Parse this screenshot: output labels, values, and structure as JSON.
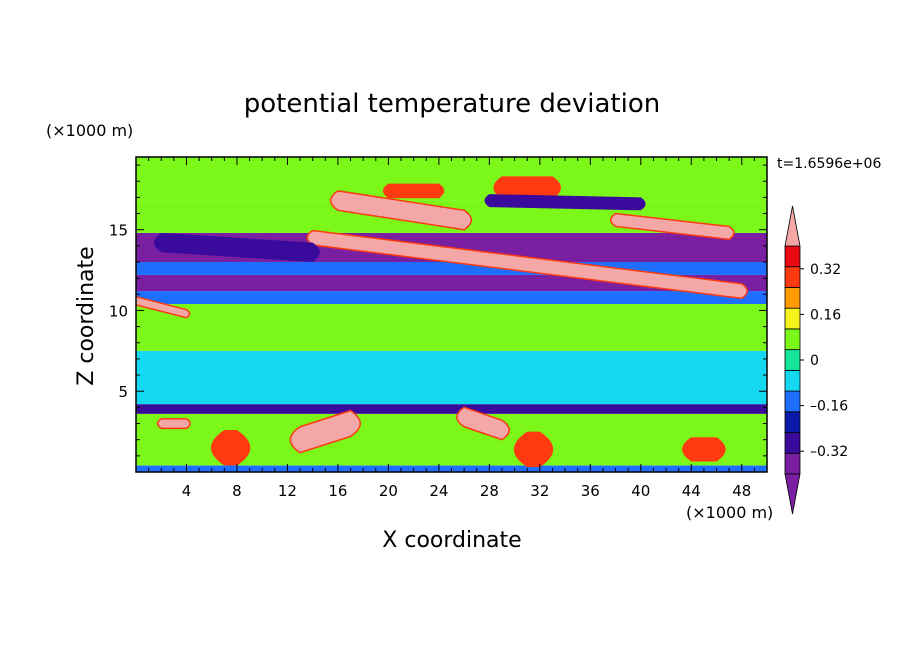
{
  "chart_data": {
    "type": "heatmap",
    "title": "potential temperature deviation",
    "xlabel": "X coordinate",
    "ylabel": "Z coordinate",
    "x_unit": "(×1000 m)",
    "y_unit": "(×1000 m)",
    "time_label": "t=1.6596e+06",
    "xlim": [
      0,
      50
    ],
    "ylim": [
      0,
      19.5
    ],
    "x_ticks": [
      4,
      8,
      12,
      16,
      20,
      24,
      28,
      32,
      36,
      40,
      44,
      48
    ],
    "y_ticks": [
      5,
      10,
      15
    ],
    "colorbar": {
      "levels": [
        -0.4,
        -0.32,
        -0.24,
        -0.16,
        -0.08,
        0,
        0.08,
        0.16,
        0.24,
        0.32,
        0.4
      ],
      "colors": [
        "#7a1fa2",
        "#3a0a9c",
        "#0a1aa8",
        "#1e6fff",
        "#14d8f0",
        "#14e59a",
        "#7cf71a",
        "#f6f21c",
        "#ff9a00",
        "#ff3a10",
        "#e80a12"
      ],
      "under_color": "#7a1fa2",
      "over_color": "#f4a7a7",
      "tick_labels": [
        "0.32",
        "0.16",
        "0",
        "–0.16",
        "–0.32"
      ],
      "tick_values": [
        0.32,
        0.16,
        0,
        -0.16,
        -0.32
      ]
    },
    "bands": [
      {
        "z": [
          0,
          0.4
        ],
        "value": -0.16
      },
      {
        "z": [
          0.4,
          3.6
        ],
        "value": 0.08
      },
      {
        "z": [
          3.6,
          4.2
        ],
        "value": -0.32
      },
      {
        "z": [
          4.2,
          7.5
        ],
        "value": -0.08
      },
      {
        "z": [
          7.5,
          10.4
        ],
        "value": 0.08
      },
      {
        "z": [
          10.4,
          11.2
        ],
        "value": -0.16
      },
      {
        "z": [
          11.2,
          12.2
        ],
        "value": -0.36
      },
      {
        "z": [
          12.2,
          13.0
        ],
        "value": -0.12
      },
      {
        "z": [
          13.0,
          14.8
        ],
        "value": -0.38
      },
      {
        "z": [
          14.8,
          16.8
        ],
        "value": 0.12
      },
      {
        "z": [
          16.8,
          19.5
        ],
        "value": 0.08
      }
    ],
    "features": [
      {
        "type": "over",
        "x": [
          14,
          48
        ],
        "z": [
          14.5,
          11.2
        ],
        "thickness": 0.9
      },
      {
        "type": "over",
        "x": [
          16,
          26
        ],
        "z": [
          16.8,
          15.6
        ],
        "thickness": 1.2
      },
      {
        "type": "over",
        "x": [
          38,
          47
        ],
        "z": [
          15.6,
          14.8
        ],
        "thickness": 0.8
      },
      {
        "type": "over",
        "x": [
          0,
          4
        ],
        "z": [
          10.6,
          9.8
        ],
        "thickness": 0.5
      },
      {
        "type": "warm",
        "x": [
          29,
          33
        ],
        "z": [
          17.6,
          17.6
        ],
        "thickness": 1.4
      },
      {
        "type": "warm",
        "x": [
          20,
          24
        ],
        "z": [
          17.4,
          17.4
        ],
        "thickness": 0.9
      },
      {
        "type": "cold",
        "x": [
          2,
          14
        ],
        "z": [
          14.2,
          13.6
        ],
        "thickness": 1.2
      },
      {
        "type": "cold",
        "x": [
          28,
          40
        ],
        "z": [
          16.8,
          16.6
        ],
        "thickness": 0.8
      },
      {
        "type": "over",
        "x": [
          13,
          17
        ],
        "z": [
          2.0,
          3.0
        ],
        "thickness": 1.6
      },
      {
        "type": "over",
        "x": [
          26,
          29
        ],
        "z": [
          3.4,
          2.6
        ],
        "thickness": 1.2
      },
      {
        "type": "over",
        "x": [
          2,
          4
        ],
        "z": [
          3.0,
          3.0
        ],
        "thickness": 0.6
      },
      {
        "type": "warm",
        "x": [
          7,
          8
        ],
        "z": [
          1.5,
          1.5
        ],
        "thickness": 2.2
      },
      {
        "type": "warm",
        "x": [
          31,
          32
        ],
        "z": [
          1.4,
          1.4
        ],
        "thickness": 2.2
      },
      {
        "type": "warm",
        "x": [
          44,
          46
        ],
        "z": [
          1.4,
          1.4
        ],
        "thickness": 1.5
      }
    ]
  }
}
